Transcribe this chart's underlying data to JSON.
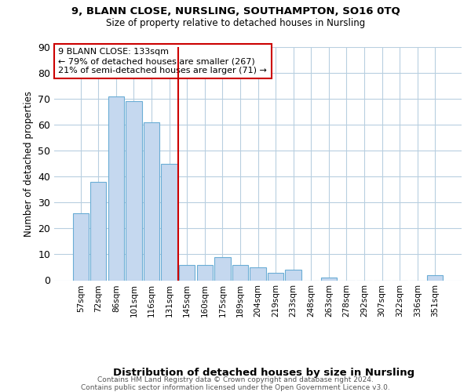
{
  "title1": "9, BLANN CLOSE, NURSLING, SOUTHAMPTON, SO16 0TQ",
  "title2": "Size of property relative to detached houses in Nursling",
  "xlabel": "Distribution of detached houses by size in Nursling",
  "ylabel": "Number of detached properties",
  "categories": [
    "57sqm",
    "72sqm",
    "86sqm",
    "101sqm",
    "116sqm",
    "131sqm",
    "145sqm",
    "160sqm",
    "175sqm",
    "189sqm",
    "204sqm",
    "219sqm",
    "233sqm",
    "248sqm",
    "263sqm",
    "278sqm",
    "292sqm",
    "307sqm",
    "322sqm",
    "336sqm",
    "351sqm"
  ],
  "bar_heights": [
    26,
    38,
    71,
    69,
    61,
    45,
    6,
    6,
    9,
    6,
    5,
    3,
    4,
    0,
    1,
    0,
    0,
    0,
    0,
    0,
    2
  ],
  "bar_color": "#c5d8ef",
  "bar_edge_color": "#6aadd5",
  "background_color": "#ffffff",
  "grid_color": "#b8cfe0",
  "vline_idx": 5,
  "vline_color": "#cc0000",
  "annotation_text": "9 BLANN CLOSE: 133sqm\n← 79% of detached houses are smaller (267)\n21% of semi-detached houses are larger (71) →",
  "annotation_box_color": "#ffffff",
  "annotation_box_edge": "#cc0000",
  "footer_text": "Contains HM Land Registry data © Crown copyright and database right 2024.\nContains public sector information licensed under the Open Government Licence v3.0.",
  "ylim": [
    0,
    90
  ],
  "yticks": [
    0,
    10,
    20,
    30,
    40,
    50,
    60,
    70,
    80,
    90
  ]
}
